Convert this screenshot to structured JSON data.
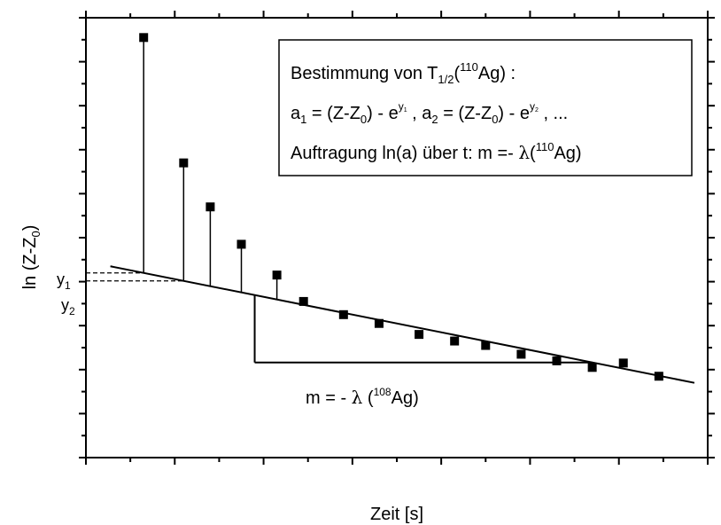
{
  "chart_data": {
    "type": "scatter",
    "xlabel": "Zeit [s]",
    "ylabel_main": "ln (Z-Z",
    "ylabel_sub": "0",
    "ylabel_close": ")",
    "xlim": [
      0,
      14
    ],
    "ylim": [
      0,
      10
    ],
    "grid": false,
    "legend": "none",
    "points": [
      {
        "x": 1.3,
        "y": 9.55
      },
      {
        "x": 2.2,
        "y": 6.7
      },
      {
        "x": 2.8,
        "y": 5.7
      },
      {
        "x": 3.5,
        "y": 4.85
      },
      {
        "x": 4.3,
        "y": 4.15
      },
      {
        "x": 4.9,
        "y": 3.55
      },
      {
        "x": 5.8,
        "y": 3.25
      },
      {
        "x": 6.6,
        "y": 3.05
      },
      {
        "x": 7.5,
        "y": 2.8
      },
      {
        "x": 8.3,
        "y": 2.65
      },
      {
        "x": 9.0,
        "y": 2.55
      },
      {
        "x": 9.8,
        "y": 2.35
      },
      {
        "x": 10.6,
        "y": 2.2
      },
      {
        "x": 11.4,
        "y": 2.05
      },
      {
        "x": 12.1,
        "y": 2.15
      },
      {
        "x": 12.9,
        "y": 1.85
      }
    ],
    "fit_line": {
      "x": [
        0.55,
        13.7
      ],
      "y": [
        4.35,
        1.7
      ]
    },
    "drop_lines": [
      {
        "x": 1.3,
        "y_top": 9.55
      },
      {
        "x": 2.2,
        "y_top": 6.7
      },
      {
        "x": 2.8,
        "y_top": 5.7
      },
      {
        "x": 3.5,
        "y_top": 4.85
      },
      {
        "x": 4.3,
        "y_top": 4.15
      }
    ],
    "slope_triangle": {
      "x_start": 3.8,
      "x_end": 11.4
    },
    "extrapolation": {
      "x_end": 2.2
    },
    "annotations": {
      "y1": {
        "main": "y",
        "sub": "1"
      },
      "y2": {
        "main": "y",
        "sub": "2"
      },
      "slope": {
        "pre": "m = - ",
        "lambda": "λ",
        "open": " (",
        "mass": "108",
        "post": "Ag)"
      }
    },
    "box": {
      "line1": {
        "pre": "Bestimmung von T",
        "sub": "1/2",
        "open": "(",
        "mass": "110",
        "post": "Ag) :"
      },
      "line2": {
        "a": "a",
        "a_sub": "1",
        "mid": " = (Z-Z",
        "z_sub": "0",
        "close": ") - e",
        "e_sup": "y",
        "e_sup_sub": "1",
        "a2_pre": " , a",
        "a2_sub": "2",
        "mid2": " = (Z-Z",
        "z2_sub": "0",
        "close2": ") - e",
        "e2_sup": "y",
        "e2_sup_sub": "2",
        "tail": " , ..."
      },
      "line3": {
        "pre": "Auftragung ln(a) über t: m =- ",
        "lambda": "λ",
        "open": "(",
        "mass": "110",
        "post": "Ag)"
      }
    }
  }
}
